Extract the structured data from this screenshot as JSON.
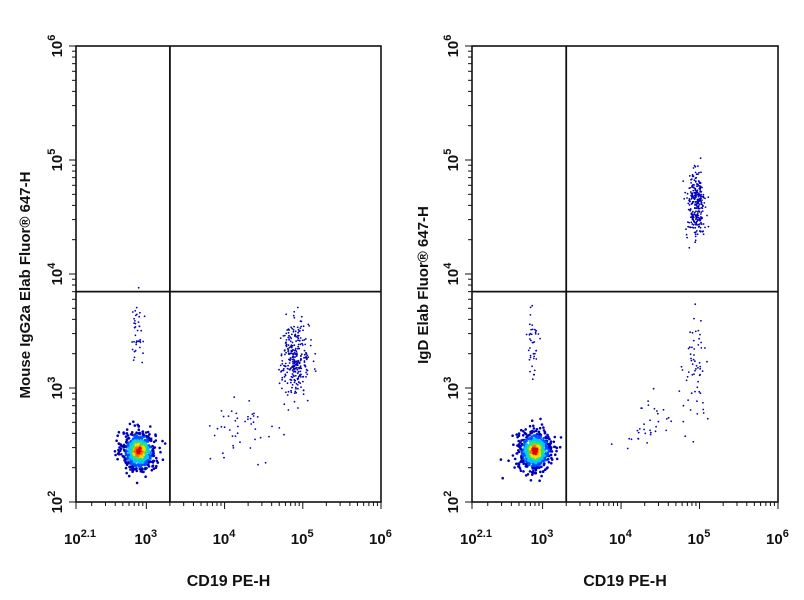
{
  "chart_data": [
    {
      "type": "scatter",
      "title": "",
      "xlabel": "CD19 PE-H",
      "ylabel": "Mouse IgG2a Elab Fluor® 647-H",
      "x_scale": "log",
      "y_scale": "log",
      "xlim": [
        126,
        1000000
      ],
      "ylim": [
        100,
        1000000
      ],
      "x_ticks": [
        {
          "base": "10",
          "exp": "2.1"
        },
        {
          "base": "10",
          "exp": "3"
        },
        {
          "base": "10",
          "exp": "4"
        },
        {
          "base": "10",
          "exp": "5"
        },
        {
          "base": "10",
          "exp": "6"
        }
      ],
      "y_ticks": [
        {
          "base": "10",
          "exp": "2"
        },
        {
          "base": "10",
          "exp": "3"
        },
        {
          "base": "10",
          "exp": "4"
        },
        {
          "base": "10",
          "exp": "5"
        },
        {
          "base": "10",
          "exp": "6"
        }
      ],
      "gate_x": 2000,
      "gate_y": 7000,
      "grid": false,
      "legend": "none",
      "colormap": [
        "#0000b8",
        "#0050ff",
        "#00c8ff",
        "#30e070",
        "#f0e000",
        "#ff7000",
        "#e00000"
      ],
      "populations": [
        {
          "center_x": 800,
          "center_y": 280,
          "events": 700
        },
        {
          "center_x": 80000,
          "center_y": 1800,
          "events": 300
        },
        {
          "center_x": 750,
          "center_y": 3000,
          "events": 40
        },
        {
          "center_x": 20000,
          "center_y": 450,
          "events": 45
        }
      ]
    },
    {
      "type": "scatter",
      "title": "",
      "xlabel": "CD19 PE-H",
      "ylabel": "IgD Elab Fluor® 647-H",
      "x_scale": "log",
      "y_scale": "log",
      "xlim": [
        126,
        1000000
      ],
      "ylim": [
        100,
        1000000
      ],
      "x_ticks": [
        {
          "base": "10",
          "exp": "2.1"
        },
        {
          "base": "10",
          "exp": "3"
        },
        {
          "base": "10",
          "exp": "4"
        },
        {
          "base": "10",
          "exp": "5"
        },
        {
          "base": "10",
          "exp": "6"
        }
      ],
      "y_ticks": [
        {
          "base": "10",
          "exp": "2"
        },
        {
          "base": "10",
          "exp": "3"
        },
        {
          "base": "10",
          "exp": "4"
        },
        {
          "base": "10",
          "exp": "5"
        },
        {
          "base": "10",
          "exp": "6"
        }
      ],
      "gate_x": 2000,
      "gate_y": 7000,
      "grid": false,
      "legend": "none",
      "colormap": [
        "#0000b8",
        "#0050ff",
        "#00c8ff",
        "#30e070",
        "#f0e000",
        "#ff7000",
        "#e00000"
      ],
      "populations": [
        {
          "center_x": 800,
          "center_y": 280,
          "events": 700
        },
        {
          "center_x": 90000,
          "center_y": 40000,
          "events": 280
        },
        {
          "center_x": 90000,
          "center_y": 1500,
          "events": 60
        },
        {
          "center_x": 750,
          "center_y": 2500,
          "events": 40
        },
        {
          "center_x": 20000,
          "center_y": 450,
          "events": 35
        }
      ]
    }
  ]
}
